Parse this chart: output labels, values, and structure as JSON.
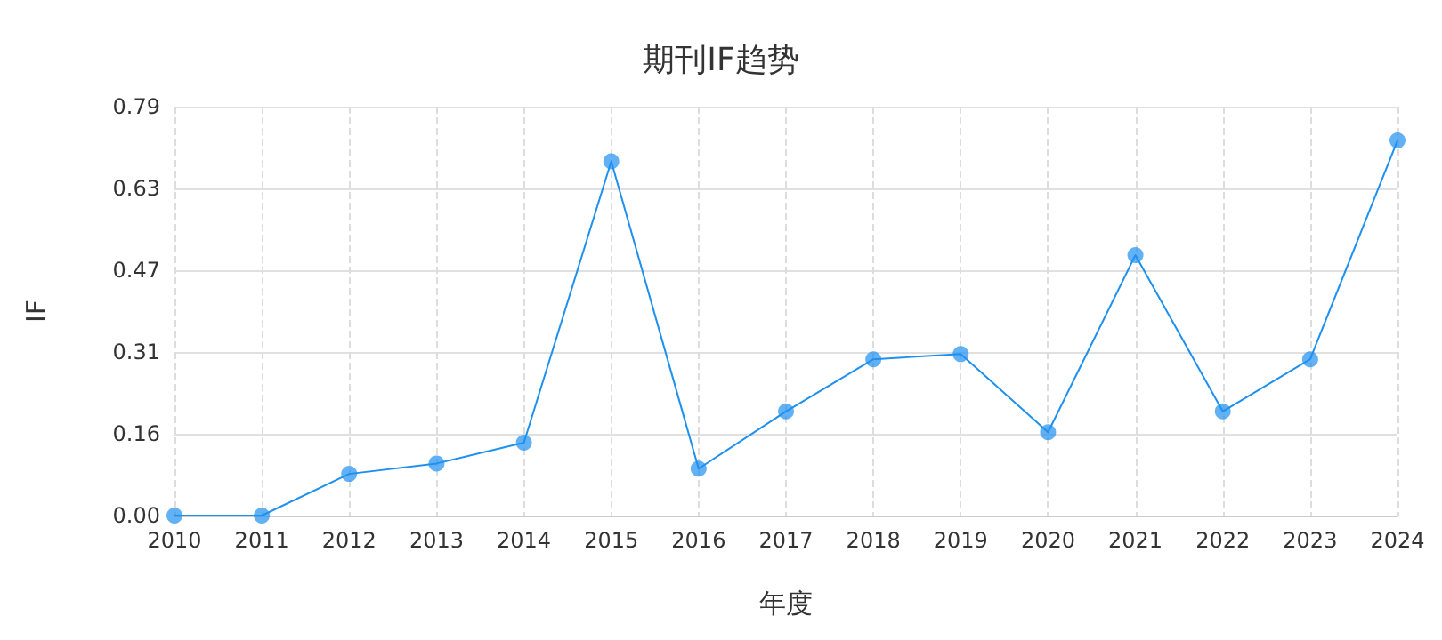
{
  "chart_data": {
    "type": "line",
    "title": "期刊IF趋势",
    "xlabel": "年度",
    "ylabel": "IF",
    "categories": [
      "2010",
      "2011",
      "2012",
      "2013",
      "2014",
      "2015",
      "2016",
      "2017",
      "2018",
      "2019",
      "2020",
      "2021",
      "2022",
      "2023",
      "2024"
    ],
    "series": [
      {
        "color": "#1e90ef",
        "values": [
          0,
          0,
          0.08,
          0.1,
          0.14,
          0.68,
          0.09,
          0.2,
          0.3,
          0.31,
          0.16,
          0.5,
          0.2,
          0.3,
          0.72
        ]
      }
    ],
    "ylim": [
      0,
      0.785
    ],
    "yticks": [
      {
        "value": 0,
        "label": "0.00"
      },
      {
        "value": 0.157,
        "label": "0.16"
      },
      {
        "value": 0.314,
        "label": "0.31"
      },
      {
        "value": 0.471,
        "label": "0.47"
      },
      {
        "value": 0.628,
        "label": "0.63"
      },
      {
        "value": 0.785,
        "label": "0.79"
      }
    ],
    "grid": true,
    "marker": "circle",
    "line_style": "solid"
  }
}
